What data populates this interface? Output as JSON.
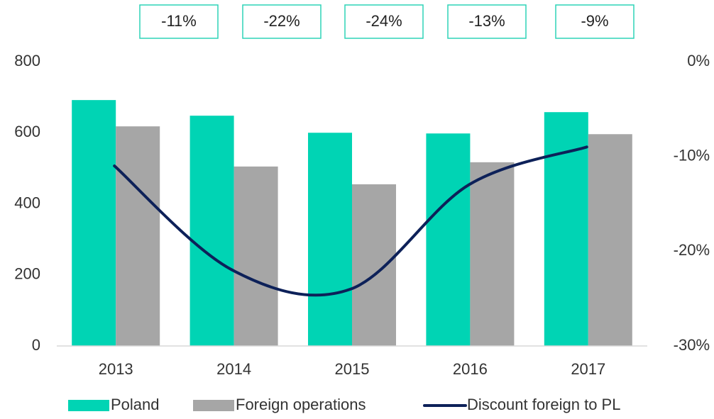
{
  "chart_data": {
    "type": "bar",
    "categories": [
      "2013",
      "2014",
      "2015",
      "2016",
      "2017"
    ],
    "series": [
      {
        "name": "Poland",
        "color": "#00d4b4",
        "values": [
          692,
          648,
          600,
          598,
          658
        ]
      },
      {
        "name": "Foreign operations",
        "color": "#a6a6a6",
        "values": [
          618,
          505,
          455,
          517,
          596
        ]
      },
      {
        "name": "Discount foreign to PL",
        "color": "#0d2159",
        "type": "line",
        "axis": "y2",
        "values": [
          -11,
          -22,
          -24,
          -13,
          -9
        ],
        "value_labels": [
          "-11%",
          "-22%",
          "-24%",
          "-13%",
          "-9%"
        ]
      }
    ],
    "ylim": [
      0,
      800
    ],
    "yticks": [
      0,
      200,
      400,
      600,
      800
    ],
    "y2lim": [
      -30,
      0
    ],
    "y2ticks": [
      {
        "value": -30,
        "label": "-30%"
      },
      {
        "value": -20,
        "label": "-20%"
      },
      {
        "value": -10,
        "label": "-10%"
      },
      {
        "value": 0,
        "label": "0%"
      }
    ],
    "legend": "bottom",
    "grid": false
  }
}
